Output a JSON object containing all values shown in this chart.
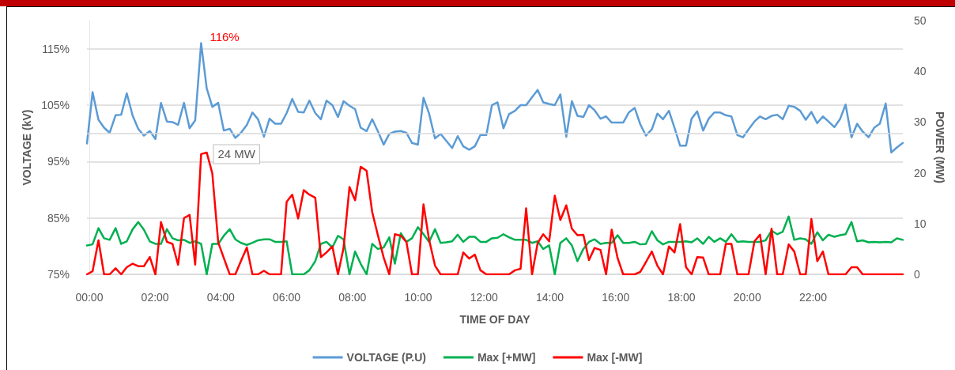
{
  "chart_data": {
    "type": "line",
    "xlabel": "TIME OF DAY",
    "ylabel": "VOLTAGE (kV)",
    "y2label": "POWER (MW)",
    "x": [
      -0.07,
      0.1,
      0.28,
      0.45,
      0.62,
      0.8,
      0.97,
      1.14,
      1.32,
      1.49,
      1.66,
      1.84,
      2.01,
      2.18,
      2.36,
      2.53,
      2.7,
      2.88,
      3.05,
      3.22,
      3.4,
      3.57,
      3.74,
      3.92,
      4.09,
      4.27,
      4.44,
      4.61,
      4.79,
      4.96,
      5.13,
      5.31,
      5.48,
      5.65,
      5.83,
      6.0,
      6.17,
      6.35,
      6.52,
      6.69,
      6.87,
      7.04,
      7.21,
      7.39,
      7.56,
      7.73,
      7.91,
      8.08,
      8.25,
      8.43,
      8.6,
      8.77,
      8.95,
      9.12,
      9.29,
      9.47,
      9.64,
      9.81,
      9.99,
      10.16,
      10.33,
      10.51,
      10.68,
      10.85,
      11.03,
      11.2,
      11.37,
      11.55,
      11.72,
      11.89,
      12.07,
      12.24,
      12.41,
      12.59,
      12.76,
      12.94,
      13.11,
      13.28,
      13.46,
      13.63,
      13.8,
      13.98,
      14.15,
      14.32,
      14.5,
      14.67,
      14.84,
      15.02,
      15.19,
      15.36,
      15.54,
      15.71,
      15.88,
      16.06,
      16.23,
      16.4,
      16.58,
      16.75,
      16.92,
      17.1,
      17.27,
      17.44,
      17.62,
      17.79,
      17.96,
      18.14,
      18.31,
      18.48,
      18.66,
      18.83,
      19.0,
      19.18,
      19.35,
      19.52,
      19.7,
      19.87,
      20.04,
      20.22,
      20.39,
      20.56,
      20.74,
      20.91,
      21.08,
      21.26,
      21.43,
      21.61,
      21.78,
      21.95,
      22.13,
      22.3,
      22.47,
      22.65,
      22.82,
      22.99,
      23.17,
      23.34,
      23.51,
      23.69,
      23.86,
      24.03,
      24.21,
      24.38,
      24.55,
      24.73
    ],
    "series": [
      {
        "name": "VOLTAGE (P.U)",
        "color": "#5b9bd5",
        "values": [
          98.2,
          107.3,
          102.4,
          101.0,
          100.1,
          103.2,
          103.3,
          107.1,
          103.1,
          100.8,
          99.6,
          100.4,
          99.0,
          105.4,
          102.1,
          102.0,
          101.5,
          105.4,
          100.9,
          102.3,
          116,
          108.0,
          104.7,
          105.4,
          100.5,
          100.8,
          99.2,
          100.1,
          101.5,
          103.7,
          102.5,
          99.4,
          102.6,
          101.7,
          101.7,
          103.6,
          106.1,
          103.8,
          103.7,
          105.8,
          103.6,
          102.5,
          105.8,
          105.0,
          102.9,
          105.7,
          104.9,
          104.3,
          101.0,
          100.4,
          102.5,
          100.4,
          98.0,
          99.9,
          100.3,
          100.4,
          100.1,
          98.3,
          98.0,
          106.3,
          103.5,
          99.1,
          99.9,
          98.7,
          97.4,
          99.5,
          97.7,
          97.1,
          97.7,
          99.7,
          99.7,
          105.0,
          105.5,
          100.9,
          103.4,
          104.0,
          105.0,
          105.0,
          106.4,
          107.7,
          105.5,
          105.2,
          105.0,
          106.9,
          99.4,
          105.7,
          103.1,
          102.9,
          105.0,
          104.1,
          102.6,
          103.0,
          101.9,
          101.9,
          101.9,
          103.7,
          104.5,
          101.6,
          99.6,
          100.7,
          103.5,
          102.5,
          104.0,
          101.0,
          97.8,
          97.8,
          102.6,
          103.9,
          100.5,
          102.6,
          103.7,
          103.7,
          103.2,
          103.0,
          99.7,
          99.3,
          100.7,
          102.1,
          103.0,
          102.5,
          103.1,
          103.3,
          102.5,
          104.9,
          104.7,
          104.0,
          102.4,
          103.8,
          101.8,
          103.0,
          102.1,
          101.1,
          102.5,
          105.1,
          99.3,
          101.7,
          100.3,
          99.3,
          101.0,
          101.7,
          105.3,
          96.6,
          97.5,
          98.3
        ],
        "value_labels": [
          null,
          null,
          null,
          null,
          null,
          null,
          null,
          null,
          null,
          null,
          null,
          null,
          null,
          null,
          null,
          null,
          null,
          null,
          null,
          null,
          "116%",
          null,
          null,
          null,
          null,
          null,
          null,
          null,
          null,
          null,
          null,
          null,
          null,
          null,
          null,
          null,
          null,
          null,
          null,
          null,
          null,
          null,
          null,
          null,
          null,
          null,
          null,
          null,
          null,
          null,
          null,
          null,
          null,
          null,
          null,
          null,
          null,
          null,
          null,
          null,
          null,
          null,
          null,
          null,
          null,
          null,
          null,
          null,
          null,
          null,
          null,
          null,
          null,
          null,
          null,
          null,
          null,
          null,
          null,
          null,
          null,
          null,
          null,
          null,
          null,
          null,
          null,
          null,
          null,
          null,
          null,
          null,
          null,
          null,
          null,
          null,
          null,
          null,
          null,
          null,
          null,
          null,
          null,
          null,
          null,
          null,
          null,
          null,
          null,
          null,
          null,
          null,
          null,
          null,
          null,
          null,
          null,
          null,
          null,
          null,
          null,
          null,
          null,
          null,
          null,
          null,
          null,
          null,
          null,
          null,
          null,
          null,
          null,
          null,
          null,
          null,
          null,
          null,
          null,
          null,
          null,
          null,
          null,
          null
        ]
      },
      {
        "name": "Max [+MW]",
        "color": "#00b050",
        "axis": "y2",
        "values": [
          5.7,
          5.9,
          9.1,
          7.1,
          6.8,
          9.1,
          6.0,
          6.5,
          8.9,
          10.3,
          8.8,
          6.5,
          6.0,
          6.0,
          8.9,
          7.1,
          6.7,
          6.8,
          6.2,
          6.5,
          6.0,
          0,
          6.0,
          6.0,
          7.6,
          8.9,
          6.9,
          6.2,
          5.8,
          6.2,
          6.7,
          6.9,
          6.9,
          6.4,
          6.4,
          6.5,
          0,
          0,
          0,
          0.8,
          2.6,
          6.0,
          6.4,
          5.3,
          7.6,
          6.9,
          0,
          4.5,
          2.1,
          0,
          6.0,
          5.0,
          5.3,
          7.3,
          2.1,
          8.1,
          6.4,
          7.1,
          9.3,
          7.9,
          6.4,
          8.9,
          6.2,
          6.3,
          6.5,
          7.8,
          6.4,
          7.4,
          7.4,
          6.4,
          6.4,
          7.1,
          7.2,
          7.9,
          7.3,
          6.8,
          6.8,
          6.8,
          6.2,
          6.5,
          5.0,
          5.7,
          0,
          6.2,
          7.1,
          5.7,
          2.6,
          5.0,
          6.4,
          6.9,
          6.0,
          6.2,
          6.2,
          7.7,
          6.2,
          6.2,
          6.4,
          5.9,
          6.0,
          8.5,
          6.7,
          5.9,
          6.4,
          6.4,
          6.4,
          6.5,
          6.3,
          7.1,
          6.0,
          7.4,
          6.4,
          7.1,
          6.4,
          7.9,
          6.4,
          6.5,
          6.4,
          6.4,
          6.4,
          6.7,
          8.6,
          7.9,
          8.4,
          11.4,
          6.8,
          7.1,
          6.9,
          6.0,
          8.3,
          6.7,
          7.8,
          7.4,
          7.7,
          7.9,
          10.3,
          6.5,
          6.7,
          6.3,
          6.4,
          6.3,
          6.4,
          6.3,
          7.1,
          6.8
        ]
      },
      {
        "name": "Max [-MW]",
        "color": "#ff0000",
        "axis": "y2",
        "values": [
          0,
          0.6,
          6.7,
          0,
          0,
          1.2,
          0,
          1.4,
          2.1,
          1.6,
          1.6,
          3.4,
          0,
          10.3,
          6.4,
          6.0,
          1.9,
          11.1,
          11.7,
          1.9,
          23.7,
          24,
          19.9,
          6.3,
          3.2,
          0,
          0,
          2.6,
          5.3,
          0,
          0,
          0.7,
          0,
          0,
          0,
          14.3,
          15.7,
          11.0,
          16.6,
          15.7,
          15.1,
          3.4,
          4.3,
          5.5,
          0,
          5.2,
          17.2,
          14.6,
          21.2,
          20.4,
          12.3,
          7.8,
          3.3,
          0,
          7.9,
          7.6,
          6.4,
          0,
          0,
          13.8,
          6.8,
          1.7,
          0,
          0,
          0,
          0,
          4.3,
          3.1,
          3.9,
          0.8,
          0,
          0,
          0,
          0,
          0,
          0.8,
          1.1,
          13.0,
          0,
          6.2,
          7.9,
          6.5,
          15.5,
          10.7,
          13.6,
          9.0,
          7.7,
          7.8,
          2.8,
          5.2,
          4.8,
          0,
          8.8,
          3.2,
          0,
          0,
          0,
          0.5,
          2.4,
          4.5,
          1.7,
          0,
          5.5,
          4.3,
          9.9,
          1.4,
          0,
          3.4,
          3.3,
          0,
          0,
          0,
          6.0,
          6.0,
          0,
          0,
          0,
          6.5,
          7.8,
          0,
          9.0,
          0,
          0,
          5.9,
          4.5,
          0,
          0,
          10.9,
          2.6,
          4.5,
          0,
          0,
          0,
          0,
          1.4,
          1.4,
          0,
          0,
          0,
          0,
          0,
          0,
          0,
          0
        ],
        "value_labels": [
          null,
          null,
          null,
          null,
          null,
          null,
          null,
          null,
          null,
          null,
          null,
          null,
          null,
          null,
          null,
          null,
          null,
          null,
          null,
          null,
          null,
          "24 MW",
          null,
          null,
          null,
          null,
          null,
          null,
          null,
          null,
          null,
          null,
          null,
          null,
          null,
          null,
          null,
          null,
          null,
          null,
          null,
          null,
          null,
          null,
          null,
          null,
          null,
          null,
          null,
          null,
          null,
          null,
          null,
          null,
          null,
          null,
          null,
          null,
          null,
          null,
          null,
          null,
          null,
          null,
          null,
          null,
          null,
          null,
          null,
          null,
          null,
          null,
          null,
          null,
          null,
          null,
          null,
          null,
          null,
          null,
          null,
          null,
          null,
          null,
          null,
          null,
          null,
          null,
          null,
          null,
          null,
          null,
          null,
          null,
          null,
          null,
          null,
          null,
          null,
          null,
          null,
          null,
          null,
          null,
          null,
          null,
          null,
          null,
          null,
          null,
          null,
          null,
          null,
          null,
          null,
          null,
          null,
          null,
          null,
          null,
          null,
          null,
          null,
          null,
          null,
          null,
          null,
          null,
          null,
          null,
          null,
          null,
          null,
          null,
          null,
          null,
          null,
          null,
          null,
          null,
          null,
          null,
          null,
          null
        ]
      }
    ],
    "xlim": [
      -0.07,
      24.73
    ],
    "xticks": [
      {
        "value": 0,
        "label": "00:00"
      },
      {
        "value": 2,
        "label": "02:00"
      },
      {
        "value": 4,
        "label": "04:00"
      },
      {
        "value": 6,
        "label": "06:00"
      },
      {
        "value": 8,
        "label": "08:00"
      },
      {
        "value": 10,
        "label": "10:00"
      },
      {
        "value": 12,
        "label": "12:00"
      },
      {
        "value": 14,
        "label": "14:00"
      },
      {
        "value": 16,
        "label": "16:00"
      },
      {
        "value": 18,
        "label": "18:00"
      },
      {
        "value": 20,
        "label": "20:00"
      },
      {
        "value": 22,
        "label": "22:00"
      }
    ],
    "ylim": [
      75,
      120
    ],
    "yticks": [
      {
        "value": 75,
        "label": "75%"
      },
      {
        "value": 85,
        "label": "85%"
      },
      {
        "value": 95,
        "label": "95%"
      },
      {
        "value": 105,
        "label": "105%"
      },
      {
        "value": 115,
        "label": "115%"
      }
    ],
    "y2lim": [
      0,
      50
    ],
    "y2ticks": [
      0,
      10,
      20,
      30,
      40,
      50
    ],
    "ref_lines": [
      {
        "axis": "y",
        "value": 100,
        "color": "#d9d9d9"
      }
    ],
    "grid": "y",
    "legend": "bottom",
    "marker": "none",
    "line_style": "solid"
  }
}
